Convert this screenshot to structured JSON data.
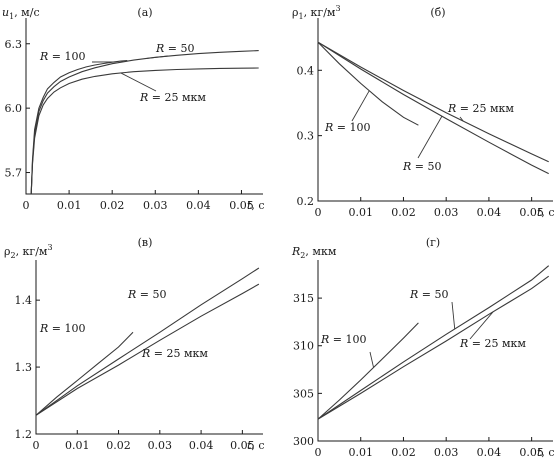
{
  "chart_data": [
    {
      "type": "line",
      "panel": "(а)",
      "ylabel_sym": "u",
      "ylabel_sub": "1",
      "ylabel_unit": ", м/с",
      "xlabel": "t",
      "xlabel_unit": ", с",
      "xlim": [
        0,
        0.055
      ],
      "ylim": [
        5.6,
        6.42
      ],
      "x_ticks": [
        0,
        0.01,
        0.02,
        0.03,
        0.04,
        0.05
      ],
      "x_tick_labels": [
        "0",
        "0.01",
        "0.02",
        "0.03",
        "0.04",
        "0.05"
      ],
      "y_ticks": [
        5.7,
        6.0,
        6.3
      ],
      "y_tick_labels": [
        "5.7",
        "6.0",
        "6.3"
      ],
      "series": [
        {
          "name": "R = 100",
          "x": [
            0.0012,
            0.0015,
            0.002,
            0.003,
            0.004,
            0.005,
            0.0065,
            0.008,
            0.01,
            0.012,
            0.014,
            0.016,
            0.018,
            0.02,
            0.022,
            0.0235
          ],
          "y": [
            5.6,
            5.76,
            5.9,
            6.0,
            6.05,
            6.09,
            6.12,
            6.145,
            6.165,
            6.18,
            6.192,
            6.201,
            6.208,
            6.214,
            6.219,
            6.222
          ]
        },
        {
          "name": "R = 50",
          "x": [
            0.0012,
            0.0015,
            0.002,
            0.003,
            0.004,
            0.005,
            0.0065,
            0.008,
            0.01,
            0.013,
            0.016,
            0.02,
            0.025,
            0.03,
            0.035,
            0.04,
            0.045,
            0.05,
            0.054
          ],
          "y": [
            5.6,
            5.75,
            5.88,
            5.985,
            6.035,
            6.07,
            6.1,
            6.124,
            6.145,
            6.17,
            6.188,
            6.207,
            6.224,
            6.237,
            6.246,
            6.254,
            6.26,
            6.265,
            6.268
          ]
        },
        {
          "name": "R = 25",
          "x": [
            0.0012,
            0.0015,
            0.002,
            0.003,
            0.004,
            0.005,
            0.0065,
            0.008,
            0.01,
            0.013,
            0.016,
            0.02,
            0.025,
            0.03,
            0.035,
            0.04,
            0.045,
            0.05,
            0.054
          ],
          "y": [
            5.6,
            5.74,
            5.86,
            5.965,
            6.015,
            6.045,
            6.075,
            6.095,
            6.115,
            6.135,
            6.148,
            6.16,
            6.17,
            6.176,
            6.18,
            6.183,
            6.185,
            6.186,
            6.187
          ]
        }
      ],
      "annotations": [
        {
          "text": "R = 100",
          "series": 0
        },
        {
          "text": "R = 50",
          "series": 1
        },
        {
          "text": "R = 25 мкм",
          "series": 2
        }
      ]
    },
    {
      "type": "line",
      "panel": "(б)",
      "ylabel_sym": "ρ",
      "ylabel_sub": "1",
      "ylabel_unit": ", кг/м",
      "ylabel_sup": "3",
      "xlabel": "t",
      "xlabel_unit": ", с",
      "xlim": [
        0,
        0.055
      ],
      "ylim": [
        0.2,
        0.48
      ],
      "x_ticks": [
        0,
        0.01,
        0.02,
        0.03,
        0.04,
        0.05
      ],
      "x_tick_labels": [
        "0",
        "0.01",
        "0.02",
        "0.03",
        "0.04",
        "0.05"
      ],
      "y_ticks": [
        0.2,
        0.3,
        0.4
      ],
      "y_tick_labels": [
        "0.2",
        "0.3",
        "0.4"
      ],
      "series": [
        {
          "name": "R = 100",
          "x": [
            0,
            0.005,
            0.01,
            0.015,
            0.02,
            0.0235
          ],
          "y": [
            0.443,
            0.41,
            0.38,
            0.352,
            0.328,
            0.316
          ]
        },
        {
          "name": "R = 50",
          "x": [
            0,
            0.01,
            0.02,
            0.03,
            0.04,
            0.05,
            0.054
          ],
          "y": [
            0.443,
            0.402,
            0.363,
            0.326,
            0.29,
            0.255,
            0.242
          ]
        },
        {
          "name": "R = 25",
          "x": [
            0,
            0.01,
            0.02,
            0.03,
            0.04,
            0.05,
            0.054
          ],
          "y": [
            0.443,
            0.405,
            0.369,
            0.335,
            0.303,
            0.272,
            0.26
          ]
        }
      ],
      "annotations": [
        {
          "text": "R = 100",
          "series": 0
        },
        {
          "text": "R = 50",
          "series": 1
        },
        {
          "text": "R = 25 мкм",
          "series": 2
        }
      ]
    },
    {
      "type": "line",
      "panel": "(в)",
      "ylabel_sym": "ρ",
      "ylabel_sub": "2",
      "ylabel_unit": ", кг/м",
      "ylabel_sup": "3",
      "xlabel": "t",
      "xlabel_unit": ", с",
      "xlim": [
        0,
        0.055
      ],
      "ylim": [
        1.2,
        1.46
      ],
      "x_ticks": [
        0,
        0.01,
        0.02,
        0.03,
        0.04,
        0.05
      ],
      "x_tick_labels": [
        "0",
        "0.01",
        "0.02",
        "0.03",
        "0.04",
        "0.05"
      ],
      "y_ticks": [
        1.2,
        1.3,
        1.4
      ],
      "y_tick_labels": [
        "1.2",
        "1.3",
        "1.4"
      ],
      "series": [
        {
          "name": "R = 100",
          "x": [
            0,
            0.005,
            0.01,
            0.015,
            0.02,
            0.0235
          ],
          "y": [
            1.228,
            1.255,
            1.28,
            1.305,
            1.33,
            1.352
          ]
        },
        {
          "name": "R = 50",
          "x": [
            0,
            0.01,
            0.02,
            0.03,
            0.04,
            0.05,
            0.054
          ],
          "y": [
            1.228,
            1.272,
            1.312,
            1.352,
            1.393,
            1.432,
            1.448
          ]
        },
        {
          "name": "R = 25",
          "x": [
            0,
            0.01,
            0.02,
            0.03,
            0.04,
            0.05,
            0.054
          ],
          "y": [
            1.228,
            1.268,
            1.303,
            1.34,
            1.376,
            1.41,
            1.424
          ]
        }
      ],
      "annotations": [
        {
          "text": "R = 100",
          "series": 0
        },
        {
          "text": "R = 50",
          "series": 1
        },
        {
          "text": "R = 25 мкм",
          "series": 2
        }
      ]
    },
    {
      "type": "line",
      "panel": "(г)",
      "ylabel_sym": "R",
      "ylabel_sub": "2",
      "ylabel_unit": ", мкм",
      "xlabel": "t",
      "xlabel_unit": ", с",
      "xlim": [
        0,
        0.055
      ],
      "ylim": [
        300,
        319
      ],
      "x_ticks": [
        0,
        0.01,
        0.02,
        0.03,
        0.04,
        0.05
      ],
      "x_tick_labels": [
        "0",
        "0.01",
        "0.02",
        "0.03",
        "0.04",
        "0.05"
      ],
      "y_ticks": [
        300,
        305,
        310,
        315
      ],
      "y_tick_labels": [
        "300",
        "305",
        "310",
        "315"
      ],
      "series": [
        {
          "name": "R = 100",
          "x": [
            0,
            0.005,
            0.01,
            0.015,
            0.02,
            0.0235
          ],
          "y": [
            302.3,
            304.3,
            306.4,
            308.6,
            310.8,
            312.4
          ]
        },
        {
          "name": "R = 50",
          "x": [
            0,
            0.01,
            0.02,
            0.03,
            0.04,
            0.05,
            0.054
          ],
          "y": [
            302.3,
            305.3,
            308.3,
            311.2,
            314.0,
            316.9,
            318.4
          ]
        },
        {
          "name": "R = 25",
          "x": [
            0,
            0.01,
            0.02,
            0.03,
            0.04,
            0.05,
            0.054
          ],
          "y": [
            302.3,
            305.0,
            307.8,
            310.5,
            313.3,
            316.0,
            317.3
          ]
        }
      ],
      "annotations": [
        {
          "text": "R = 100",
          "series": 0
        },
        {
          "text": "R = 50",
          "series": 1
        },
        {
          "text": "R = 25 мкм",
          "series": 2
        }
      ]
    }
  ]
}
